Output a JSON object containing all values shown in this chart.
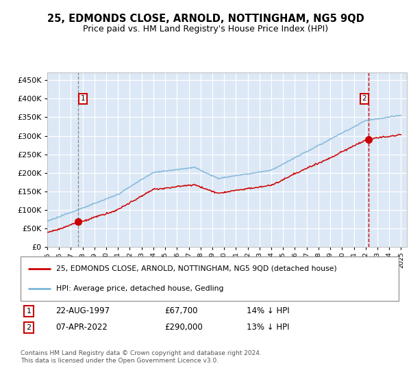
{
  "title": "25, EDMONDS CLOSE, ARNOLD, NOTTINGHAM, NG5 9QD",
  "subtitle": "Price paid vs. HM Land Registry's House Price Index (HPI)",
  "ylim": [
    0,
    470000
  ],
  "ytick_vals": [
    0,
    50000,
    100000,
    150000,
    200000,
    250000,
    300000,
    350000,
    400000,
    450000
  ],
  "plot_bg_color": "#dce8f5",
  "grid_color": "#ffffff",
  "hpi_color": "#7ab4d8",
  "price_color": "#cc0000",
  "sale1_date": 1997.64,
  "sale1_price": 67700,
  "sale2_date": 2022.27,
  "sale2_price": 290000,
  "legend_line1": "25, EDMONDS CLOSE, ARNOLD, NOTTINGHAM, NG5 9QD (detached house)",
  "legend_line2": "HPI: Average price, detached house, Gedling",
  "annotation1_date": "22-AUG-1997",
  "annotation1_price": "£67,700",
  "annotation1_hpi": "14% ↓ HPI",
  "annotation2_date": "07-APR-2022",
  "annotation2_price": "£290,000",
  "annotation2_hpi": "13% ↓ HPI",
  "footer": "Contains HM Land Registry data © Crown copyright and database right 2024.\nThis data is licensed under the Open Government Licence v3.0."
}
